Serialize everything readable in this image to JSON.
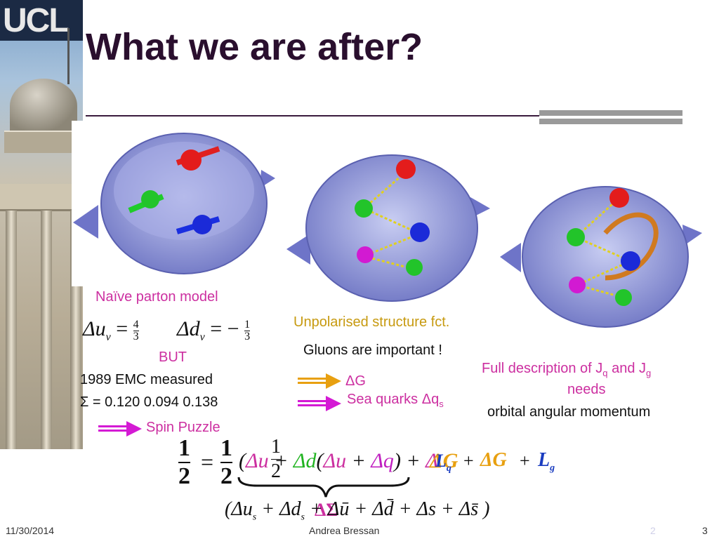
{
  "slide": {
    "title": "What we are after?",
    "logo_text": "UCL",
    "panels": {
      "naive_caption": "Naïve parton model",
      "unpolarised_caption": "Unpolarised structure fct.",
      "gluons_text": "Gluons are important !"
    },
    "naive_eq": {
      "du_lhs": "Δu",
      "du_sub": "v",
      "du_num": "4",
      "du_den": "3",
      "dd_lhs": "Δd",
      "dd_sub": "v",
      "dd_sign": "= −",
      "dd_num": "1",
      "dd_den": "3"
    },
    "but_label": "BUT",
    "emc_line": "1989 EMC measured",
    "sigma_line": "Σ = 0.120   0.094   0.138",
    "spin_puzzle": "Spin Puzzle",
    "delta_g": "ΔG",
    "sea_quarks": "Sea quarks Δq",
    "sea_quarks_sub": "s",
    "full_desc_1": "Full description of J",
    "full_desc_q": "q",
    "full_desc_and": " and J",
    "full_desc_g": "g",
    "full_desc_2": "needs",
    "full_desc_3": "orbital angular momentum",
    "equation": {
      "lhs_num": "1",
      "lhs_den": "2",
      "half_num": "1",
      "half_den": "2",
      "half2_num": "1",
      "half2_den": "2",
      "delta_g": "ΔG",
      "lq": "L",
      "lq_sub": "q",
      "dg2": "ΔG",
      "lg": "L",
      "lg_sub": "g",
      "sigma_bracket": "ΔΣ",
      "sea_line": "(Δu",
      "sea_line_sub": "s",
      "sea_dd": "+ Δd",
      "sea_dd_sub": "s",
      "sea_rest": "+ Δū + Δd̄ + Δs + Δs̄ )"
    },
    "footer": {
      "date": "11/30/2014",
      "author": "Andrea Bressan",
      "page": "3",
      "ghost": "2"
    }
  }
}
